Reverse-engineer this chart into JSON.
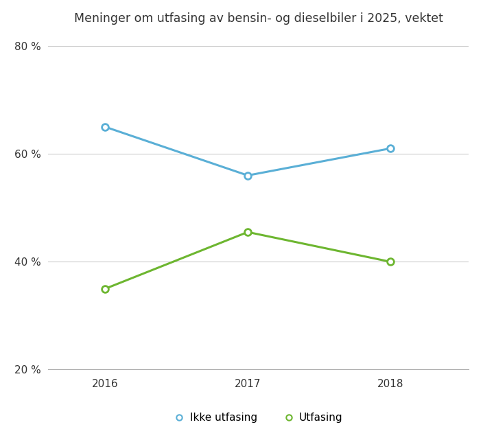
{
  "title": "Meninger om utfasing av bensin- og dieselbiler i 2025, vektet",
  "years": [
    2016,
    2017,
    2018
  ],
  "ikke_utfasing": [
    65.0,
    56.0,
    61.0
  ],
  "utfasing": [
    35.0,
    45.5,
    40.0
  ],
  "blue_color": "#5AAFD6",
  "green_color": "#6DB630",
  "ylim": [
    20,
    82
  ],
  "yticks": [
    20,
    40,
    60,
    80
  ],
  "ytick_labels": [
    "20 %",
    "40 %",
    "60 %",
    "80 %"
  ],
  "legend_ikke": "Ikke utfasing",
  "legend_utfasing": "Utfasing",
  "background_color": "#ffffff",
  "grid_color": "#cccccc",
  "marker_size": 7,
  "line_width": 2.2,
  "title_fontsize": 12.5,
  "tick_fontsize": 11,
  "legend_fontsize": 11
}
